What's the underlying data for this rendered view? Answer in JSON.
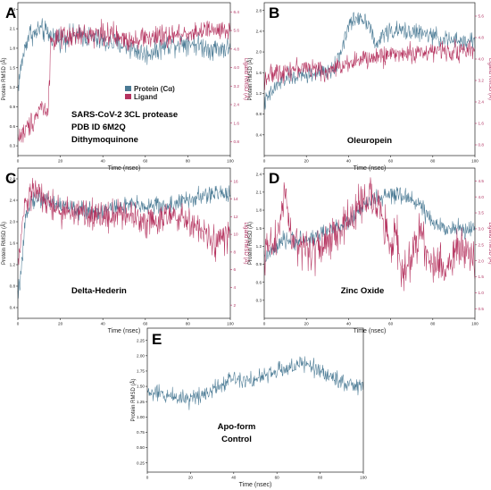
{
  "colors": {
    "protein": "#4a7a94",
    "ligand": "#b5335f"
  },
  "legend": {
    "protein": "Protein (Cα)",
    "ligand": "Ligand"
  },
  "chart_data": [
    {
      "panel": "A",
      "type": "line",
      "annotation": [
        "SARS-CoV-2 3CL protease",
        "PDB ID  6M2Q",
        "Dithymoquinone"
      ],
      "xlabel": "Time (nsec)",
      "ylabel": "Protein RMSD (Å)",
      "y2label": "Ligand RMSD (Å)",
      "xlim": [
        0,
        100
      ],
      "ylim": [
        0.15,
        2.5
      ],
      "y2lim": [
        0.2,
        6.8
      ],
      "xticks": [
        "0",
        "20",
        "40",
        "60",
        "80",
        "100"
      ],
      "yticks": [
        "0.3",
        "0.6",
        "0.9",
        "1.2",
        "1.5",
        "1.8",
        "2.1",
        "2.4"
      ],
      "y2ticks": [
        "0.8",
        "1.6",
        "2.4",
        "3.2",
        "4.0",
        "4.8",
        "5.6",
        "6.4"
      ],
      "series": [
        {
          "name": "Protein (Cα)",
          "axis": "left",
          "points": [
            [
              0,
              1.2
            ],
            [
              2,
              1.6
            ],
            [
              4,
              1.9
            ],
            [
              6,
              2.05
            ],
            [
              8,
              2.0
            ],
            [
              10,
              2.1
            ],
            [
              15,
              2.0
            ],
            [
              20,
              1.95
            ],
            [
              30,
              2.0
            ],
            [
              40,
              1.9
            ],
            [
              50,
              1.85
            ],
            [
              60,
              1.7
            ],
            [
              70,
              1.85
            ],
            [
              80,
              1.9
            ],
            [
              90,
              1.8
            ],
            [
              100,
              1.8
            ]
          ],
          "noise": 0.12
        },
        {
          "name": "Ligand",
          "axis": "right",
          "points": [
            [
              0,
              1.0
            ],
            [
              3,
              1.2
            ],
            [
              6,
              1.6
            ],
            [
              9,
              2.0
            ],
            [
              11,
              2.4
            ],
            [
              13,
              2.1
            ],
            [
              14.5,
              2.5
            ],
            [
              15.5,
              5.2
            ],
            [
              20,
              5.2
            ],
            [
              30,
              5.4
            ],
            [
              40,
              5.5
            ],
            [
              50,
              5.2
            ],
            [
              60,
              5.3
            ],
            [
              70,
              5.3
            ],
            [
              80,
              5.5
            ],
            [
              90,
              5.6
            ],
            [
              100,
              5.5
            ]
          ],
          "noise": 0.35
        }
      ]
    },
    {
      "panel": "B",
      "type": "line",
      "annotation": [
        "Oleuropein"
      ],
      "xlabel": "Time (nsec)",
      "ylabel": "Protein RMSD (Å)",
      "y2label": "Ligand RMSD (Å)",
      "xlim": [
        0,
        100
      ],
      "ylim": [
        0.0,
        2.95
      ],
      "y2lim": [
        0.4,
        6.1
      ],
      "xticks": [
        "0",
        "20",
        "40",
        "60",
        "80",
        "100"
      ],
      "yticks": [
        "0.4",
        "0.8",
        "1.2",
        "1.6",
        "2.0",
        "2.4",
        "2.8"
      ],
      "y2ticks": [
        "0.8",
        "1.6",
        "2.4",
        "3.2",
        "4.0",
        "4.8",
        "5.6"
      ],
      "series": [
        {
          "name": "Protein (Cα)",
          "axis": "left",
          "points": [
            [
              0,
              1.0
            ],
            [
              5,
              1.3
            ],
            [
              10,
              1.5
            ],
            [
              20,
              1.55
            ],
            [
              30,
              1.6
            ],
            [
              34,
              1.7
            ],
            [
              37,
              2.1
            ],
            [
              40,
              2.5
            ],
            [
              45,
              2.7
            ],
            [
              50,
              2.55
            ],
            [
              53,
              2.05
            ],
            [
              56,
              2.35
            ],
            [
              60,
              2.4
            ],
            [
              70,
              2.4
            ],
            [
              80,
              2.3
            ],
            [
              90,
              2.2
            ],
            [
              100,
              2.2
            ]
          ],
          "noise": 0.12
        },
        {
          "name": "Ligand",
          "axis": "right",
          "points": [
            [
              0,
              3.3
            ],
            [
              10,
              3.6
            ],
            [
              20,
              3.7
            ],
            [
              30,
              3.5
            ],
            [
              40,
              3.9
            ],
            [
              50,
              4.0
            ],
            [
              60,
              4.2
            ],
            [
              70,
              4.2
            ],
            [
              80,
              4.3
            ],
            [
              90,
              4.3
            ],
            [
              100,
              4.3
            ]
          ],
          "noise": 0.25
        }
      ]
    },
    {
      "panel": "C",
      "type": "line",
      "annotation": [
        "Delta-Hederin"
      ],
      "xlabel": "Time (nsec)",
      "ylabel": "Protein RMSD (Å)",
      "y2label": "Ligand RMSD (Å)",
      "xlim": [
        0,
        100
      ],
      "ylim": [
        0.2,
        3.0
      ],
      "y2lim": [
        0.5,
        17.5
      ],
      "xticks": [
        "0",
        "20",
        "40",
        "60",
        "80",
        "100"
      ],
      "yticks": [
        "0.4",
        "0.8",
        "1.2",
        "1.6",
        "2.0",
        "2.4",
        "2.8"
      ],
      "y2ticks": [
        "2",
        "4",
        "6",
        "8",
        "10",
        "12",
        "14",
        "16"
      ],
      "series": [
        {
          "name": "Protein (Cα)",
          "axis": "left",
          "points": [
            [
              0,
              0.6
            ],
            [
              2,
              1.2
            ],
            [
              4,
              2.2
            ],
            [
              6,
              2.4
            ],
            [
              10,
              2.45
            ],
            [
              20,
              2.3
            ],
            [
              30,
              2.2
            ],
            [
              40,
              2.2
            ],
            [
              50,
              2.3
            ],
            [
              60,
              2.3
            ],
            [
              70,
              2.3
            ],
            [
              80,
              2.4
            ],
            [
              90,
              2.5
            ],
            [
              100,
              2.55
            ]
          ],
          "noise": 0.12
        },
        {
          "name": "Ligand",
          "axis": "right",
          "points": [
            [
              0,
              6.0
            ],
            [
              3,
              13.0
            ],
            [
              7,
              15.0
            ],
            [
              12,
              14.0
            ],
            [
              20,
              12.5
            ],
            [
              30,
              12.5
            ],
            [
              40,
              12.0
            ],
            [
              50,
              12.5
            ],
            [
              60,
              11.5
            ],
            [
              70,
              12.0
            ],
            [
              80,
              11.5
            ],
            [
              88,
              10.0
            ],
            [
              92,
              9.0
            ],
            [
              100,
              10.0
            ]
          ],
          "noise": 1.2
        }
      ]
    },
    {
      "panel": "D",
      "type": "line",
      "annotation": [
        "Zinc Oxide"
      ],
      "xlabel": "Time (nsec)",
      "ylabel": "Protein RMSD (Å)",
      "y2label": "Ligand RMSD (Å)",
      "xlim": [
        0,
        100
      ],
      "ylim": [
        0.0,
        2.5
      ],
      "y2lim": [
        0.2,
        4.9
      ],
      "xticks": [
        "0",
        "20",
        "40",
        "60",
        "80",
        "100"
      ],
      "yticks": [
        "0.3",
        "0.6",
        "0.9",
        "1.2",
        "1.5",
        "1.8",
        "2.1",
        "2.4"
      ],
      "y2ticks": [
        "0.5",
        "1.0",
        "1.5",
        "2.0",
        "2.5",
        "3.0",
        "3.5",
        "4.0",
        "4.5"
      ],
      "series": [
        {
          "name": "Protein (Cα)",
          "axis": "left",
          "points": [
            [
              0,
              1.0
            ],
            [
              10,
              1.3
            ],
            [
              20,
              1.3
            ],
            [
              30,
              1.45
            ],
            [
              40,
              1.6
            ],
            [
              50,
              1.95
            ],
            [
              60,
              2.05
            ],
            [
              70,
              2.0
            ],
            [
              75,
              1.85
            ],
            [
              80,
              1.55
            ],
            [
              90,
              1.5
            ],
            [
              100,
              1.45
            ]
          ],
          "noise": 0.1
        },
        {
          "name": "Ligand",
          "axis": "right",
          "points": [
            [
              0,
              2.3
            ],
            [
              5,
              2.5
            ],
            [
              8,
              3.5
            ],
            [
              10,
              4.2
            ],
            [
              12,
              3.0
            ],
            [
              15,
              2.4
            ],
            [
              25,
              2.3
            ],
            [
              30,
              2.6
            ],
            [
              40,
              3.2
            ],
            [
              45,
              3.8
            ],
            [
              50,
              4.0
            ],
            [
              55,
              3.6
            ],
            [
              58,
              2.8
            ],
            [
              60,
              2.4
            ],
            [
              62,
              3.2
            ],
            [
              65,
              1.6
            ],
            [
              70,
              2.0
            ],
            [
              75,
              3.1
            ],
            [
              78,
              2.0
            ],
            [
              85,
              1.8
            ],
            [
              92,
              2.4
            ],
            [
              100,
              2.0
            ]
          ],
          "noise": 0.45
        }
      ]
    },
    {
      "panel": "E",
      "type": "line",
      "annotation": [
        "Apo-form",
        "Control"
      ],
      "xlabel": "Time (nsec)",
      "ylabel": "Protein RMSD (Å)",
      "xlim": [
        0,
        100
      ],
      "ylim": [
        0.1,
        2.45
      ],
      "xticks": [
        "0",
        "20",
        "40",
        "60",
        "80",
        "100"
      ],
      "yticks": [
        "0.25",
        "0.50",
        "0.75",
        "1.00",
        "1.25",
        "1.50",
        "1.75",
        "2.00",
        "2.25"
      ],
      "series": [
        {
          "name": "Protein (Cα)",
          "axis": "left",
          "points": [
            [
              0,
              1.4
            ],
            [
              10,
              1.35
            ],
            [
              20,
              1.3
            ],
            [
              30,
              1.45
            ],
            [
              40,
              1.65
            ],
            [
              50,
              1.6
            ],
            [
              60,
              1.75
            ],
            [
              70,
              1.85
            ],
            [
              75,
              1.85
            ],
            [
              80,
              1.75
            ],
            [
              85,
              1.65
            ],
            [
              90,
              1.6
            ],
            [
              95,
              1.5
            ],
            [
              100,
              1.5
            ]
          ],
          "noise": 0.1
        }
      ]
    }
  ]
}
